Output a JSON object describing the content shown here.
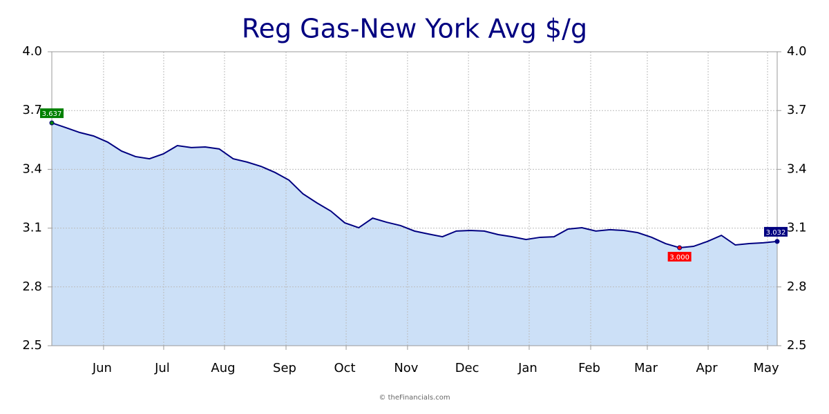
{
  "chart_data": {
    "type": "area",
    "title": "Reg Gas-New York Avg $/g",
    "footer": "© theFinancials.com",
    "x": [
      0,
      1,
      2,
      3,
      4,
      5,
      6,
      7,
      8,
      9,
      10,
      11,
      12,
      13,
      14,
      15,
      16,
      17,
      18,
      19,
      20,
      21,
      22,
      23,
      24,
      25,
      26,
      27,
      28,
      29,
      30,
      31,
      32,
      33,
      34,
      35,
      36,
      37,
      38,
      39,
      40,
      41,
      42,
      43,
      44,
      45,
      46,
      47,
      48,
      49,
      50,
      51,
      52
    ],
    "values": [
      3.637,
      3.613,
      3.588,
      3.57,
      3.539,
      3.493,
      3.465,
      3.454,
      3.479,
      3.521,
      3.511,
      3.514,
      3.504,
      3.454,
      3.437,
      3.415,
      3.384,
      3.345,
      3.275,
      3.229,
      3.187,
      3.127,
      3.102,
      3.151,
      3.13,
      3.113,
      3.085,
      3.07,
      3.056,
      3.085,
      3.088,
      3.085,
      3.067,
      3.056,
      3.042,
      3.053,
      3.056,
      3.095,
      3.102,
      3.085,
      3.092,
      3.088,
      3.077,
      3.053,
      3.021,
      3.0,
      3.007,
      3.032,
      3.063,
      3.014,
      3.021,
      3.025,
      3.032
    ],
    "value_labels": [
      "3.637",
      null,
      null,
      null,
      null,
      null,
      null,
      null,
      null,
      null,
      null,
      null,
      null,
      null,
      null,
      null,
      null,
      null,
      null,
      null,
      null,
      null,
      null,
      null,
      null,
      null,
      null,
      null,
      null,
      null,
      null,
      null,
      null,
      null,
      null,
      null,
      null,
      null,
      null,
      null,
      null,
      null,
      null,
      null,
      null,
      "3.000",
      null,
      null,
      null,
      null,
      null,
      null,
      "3.032"
    ],
    "label_colors": {
      "first": "#008000",
      "min": "#ff0000",
      "last": "#000080"
    },
    "color": "#000080",
    "fill": "#cce0f7",
    "xlim": [
      0,
      52
    ],
    "xticks": [
      {
        "value": 3.71,
        "label": "Jun"
      },
      {
        "value": 8.02,
        "label": "Jul"
      },
      {
        "value": 12.38,
        "label": "Aug"
      },
      {
        "value": 16.79,
        "label": "Sep"
      },
      {
        "value": 21.1,
        "label": "Oct"
      },
      {
        "value": 25.5,
        "label": "Nov"
      },
      {
        "value": 29.87,
        "label": "Dec"
      },
      {
        "value": 34.22,
        "label": "Jan"
      },
      {
        "value": 38.63,
        "label": "Feb"
      },
      {
        "value": 42.69,
        "label": "Mar"
      },
      {
        "value": 47.05,
        "label": "Apr"
      },
      {
        "value": 51.31,
        "label": "May"
      }
    ],
    "ylim": [
      2.5,
      4
    ],
    "yticks": [
      2.5,
      2.8,
      3.1,
      3.4,
      3.7,
      {
        "value": 4,
        "label": "4.0"
      }
    ],
    "grid": true
  }
}
